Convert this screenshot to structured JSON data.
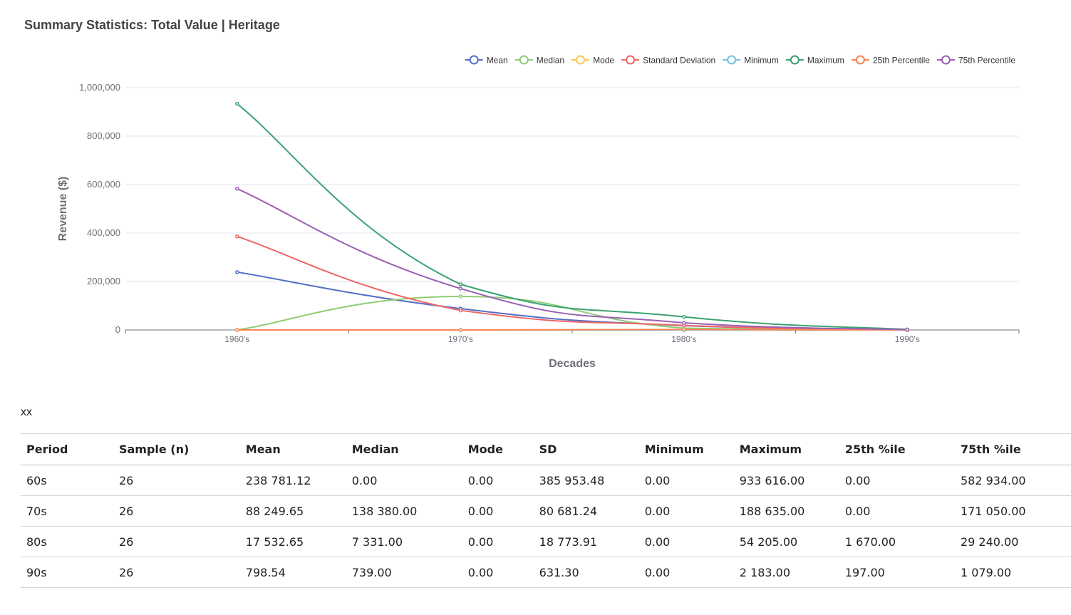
{
  "note": "xx",
  "chart_data": {
    "type": "line",
    "title": "Summary Statistics: Total Value | Heritage",
    "xlabel": "Decades",
    "ylabel": "Revenue ($)",
    "categories": [
      "1960's",
      "1970's",
      "1980's",
      "1990's"
    ],
    "ylim": [
      0,
      1000000
    ],
    "yticks": [
      0,
      200000,
      400000,
      600000,
      800000,
      1000000
    ],
    "ytick_labels": [
      "0",
      "200,000",
      "400,000",
      "600,000",
      "800,000",
      "1,000,000"
    ],
    "grid": true,
    "legend_position": "top-right",
    "series": [
      {
        "name": "Mean",
        "color": "#5470c6",
        "values": [
          238781.12,
          88249.65,
          17532.65,
          798.54
        ]
      },
      {
        "name": "Median",
        "color": "#91cc75",
        "values": [
          0,
          138380,
          7331,
          739
        ]
      },
      {
        "name": "Mode",
        "color": "#fac858",
        "values": [
          0,
          0,
          0,
          0
        ]
      },
      {
        "name": "Standard Deviation",
        "color": "#ee6666",
        "values": [
          385953.48,
          80681.24,
          18773.91,
          631.3
        ]
      },
      {
        "name": "Minimum",
        "color": "#73c0de",
        "values": [
          0,
          0,
          0,
          0
        ]
      },
      {
        "name": "Maximum",
        "color": "#3ba272",
        "values": [
          933616,
          188635,
          54205,
          2183
        ]
      },
      {
        "name": "25th Percentile",
        "color": "#fc8452",
        "values": [
          0,
          0,
          1670,
          197
        ]
      },
      {
        "name": "75th Percentile",
        "color": "#9a60b4",
        "values": [
          582934,
          171050,
          29240,
          1079
        ]
      }
    ]
  },
  "table": {
    "headers": [
      "Period",
      "Sample (n)",
      "Mean",
      "Median",
      "Mode",
      "SD",
      "Minimum",
      "Maximum",
      "25th %ile",
      "75th %ile"
    ],
    "rows": [
      [
        "60s",
        "26",
        "238 781.12",
        "0.00",
        "0.00",
        "385 953.48",
        "0.00",
        "933 616.00",
        "0.00",
        "582 934.00"
      ],
      [
        "70s",
        "26",
        "88 249.65",
        "138 380.00",
        "0.00",
        "80 681.24",
        "0.00",
        "188 635.00",
        "0.00",
        "171 050.00"
      ],
      [
        "80s",
        "26",
        "17 532.65",
        "7 331.00",
        "0.00",
        "18 773.91",
        "0.00",
        "54 205.00",
        "1 670.00",
        "29 240.00"
      ],
      [
        "90s",
        "26",
        "798.54",
        "739.00",
        "0.00",
        "631.30",
        "0.00",
        "2 183.00",
        "197.00",
        "1 079.00"
      ]
    ]
  }
}
